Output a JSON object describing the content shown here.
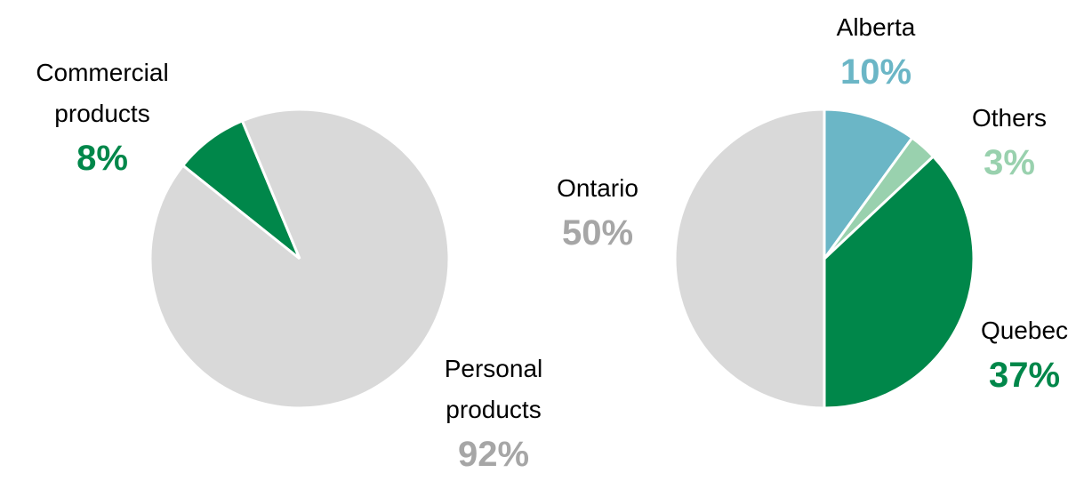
{
  "chart_data": [
    {
      "type": "pie",
      "categories": [
        "Commercial products",
        "Personal products"
      ],
      "values": [
        8,
        92
      ],
      "value_labels": [
        "8%",
        "92%"
      ],
      "colors": [
        "#00874a",
        "#d9d9d9"
      ],
      "label_colors": [
        "#00874a",
        "#a6a6a6"
      ]
    },
    {
      "type": "pie",
      "categories": [
        "Alberta",
        "Others",
        "Quebec",
        "Ontario"
      ],
      "values": [
        10,
        3,
        37,
        50
      ],
      "value_labels": [
        "10%",
        "3%",
        "37%",
        "50%"
      ],
      "colors": [
        "#6bb6c6",
        "#99d1ae",
        "#00874a",
        "#d9d9d9"
      ],
      "label_colors": [
        "#6bb6c6",
        "#99d1ae",
        "#00874a",
        "#a6a6a6"
      ]
    }
  ]
}
